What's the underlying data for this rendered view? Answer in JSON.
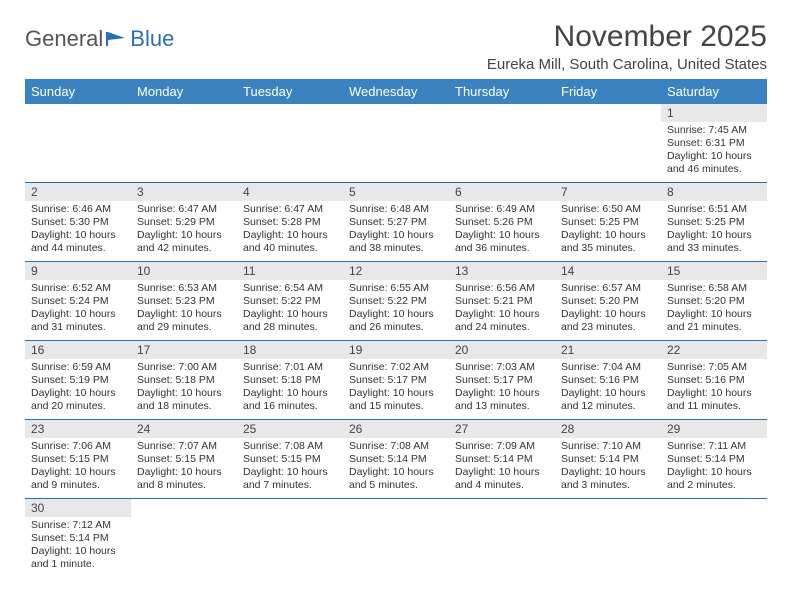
{
  "logo": {
    "part1": "General",
    "part2": "Blue"
  },
  "title": "November 2025",
  "location": "Eureka Mill, South Carolina, United States",
  "weekdays": [
    "Sunday",
    "Monday",
    "Tuesday",
    "Wednesday",
    "Thursday",
    "Friday",
    "Saturday"
  ],
  "colors": {
    "header_bg": "#3b83c0",
    "header_text": "#ffffff",
    "daynum_bg": "#e8e8e8",
    "border": "#2a6fb5"
  },
  "first_weekday_index": 6,
  "days": [
    {
      "n": 1,
      "sunrise": "7:45 AM",
      "sunset": "6:31 PM",
      "daylight": "10 hours and 46 minutes."
    },
    {
      "n": 2,
      "sunrise": "6:46 AM",
      "sunset": "5:30 PM",
      "daylight": "10 hours and 44 minutes."
    },
    {
      "n": 3,
      "sunrise": "6:47 AM",
      "sunset": "5:29 PM",
      "daylight": "10 hours and 42 minutes."
    },
    {
      "n": 4,
      "sunrise": "6:47 AM",
      "sunset": "5:28 PM",
      "daylight": "10 hours and 40 minutes."
    },
    {
      "n": 5,
      "sunrise": "6:48 AM",
      "sunset": "5:27 PM",
      "daylight": "10 hours and 38 minutes."
    },
    {
      "n": 6,
      "sunrise": "6:49 AM",
      "sunset": "5:26 PM",
      "daylight": "10 hours and 36 minutes."
    },
    {
      "n": 7,
      "sunrise": "6:50 AM",
      "sunset": "5:25 PM",
      "daylight": "10 hours and 35 minutes."
    },
    {
      "n": 8,
      "sunrise": "6:51 AM",
      "sunset": "5:25 PM",
      "daylight": "10 hours and 33 minutes."
    },
    {
      "n": 9,
      "sunrise": "6:52 AM",
      "sunset": "5:24 PM",
      "daylight": "10 hours and 31 minutes."
    },
    {
      "n": 10,
      "sunrise": "6:53 AM",
      "sunset": "5:23 PM",
      "daylight": "10 hours and 29 minutes."
    },
    {
      "n": 11,
      "sunrise": "6:54 AM",
      "sunset": "5:22 PM",
      "daylight": "10 hours and 28 minutes."
    },
    {
      "n": 12,
      "sunrise": "6:55 AM",
      "sunset": "5:22 PM",
      "daylight": "10 hours and 26 minutes."
    },
    {
      "n": 13,
      "sunrise": "6:56 AM",
      "sunset": "5:21 PM",
      "daylight": "10 hours and 24 minutes."
    },
    {
      "n": 14,
      "sunrise": "6:57 AM",
      "sunset": "5:20 PM",
      "daylight": "10 hours and 23 minutes."
    },
    {
      "n": 15,
      "sunrise": "6:58 AM",
      "sunset": "5:20 PM",
      "daylight": "10 hours and 21 minutes."
    },
    {
      "n": 16,
      "sunrise": "6:59 AM",
      "sunset": "5:19 PM",
      "daylight": "10 hours and 20 minutes."
    },
    {
      "n": 17,
      "sunrise": "7:00 AM",
      "sunset": "5:18 PM",
      "daylight": "10 hours and 18 minutes."
    },
    {
      "n": 18,
      "sunrise": "7:01 AM",
      "sunset": "5:18 PM",
      "daylight": "10 hours and 16 minutes."
    },
    {
      "n": 19,
      "sunrise": "7:02 AM",
      "sunset": "5:17 PM",
      "daylight": "10 hours and 15 minutes."
    },
    {
      "n": 20,
      "sunrise": "7:03 AM",
      "sunset": "5:17 PM",
      "daylight": "10 hours and 13 minutes."
    },
    {
      "n": 21,
      "sunrise": "7:04 AM",
      "sunset": "5:16 PM",
      "daylight": "10 hours and 12 minutes."
    },
    {
      "n": 22,
      "sunrise": "7:05 AM",
      "sunset": "5:16 PM",
      "daylight": "10 hours and 11 minutes."
    },
    {
      "n": 23,
      "sunrise": "7:06 AM",
      "sunset": "5:15 PM",
      "daylight": "10 hours and 9 minutes."
    },
    {
      "n": 24,
      "sunrise": "7:07 AM",
      "sunset": "5:15 PM",
      "daylight": "10 hours and 8 minutes."
    },
    {
      "n": 25,
      "sunrise": "7:08 AM",
      "sunset": "5:15 PM",
      "daylight": "10 hours and 7 minutes."
    },
    {
      "n": 26,
      "sunrise": "7:08 AM",
      "sunset": "5:14 PM",
      "daylight": "10 hours and 5 minutes."
    },
    {
      "n": 27,
      "sunrise": "7:09 AM",
      "sunset": "5:14 PM",
      "daylight": "10 hours and 4 minutes."
    },
    {
      "n": 28,
      "sunrise": "7:10 AM",
      "sunset": "5:14 PM",
      "daylight": "10 hours and 3 minutes."
    },
    {
      "n": 29,
      "sunrise": "7:11 AM",
      "sunset": "5:14 PM",
      "daylight": "10 hours and 2 minutes."
    },
    {
      "n": 30,
      "sunrise": "7:12 AM",
      "sunset": "5:14 PM",
      "daylight": "10 hours and 1 minute."
    }
  ]
}
